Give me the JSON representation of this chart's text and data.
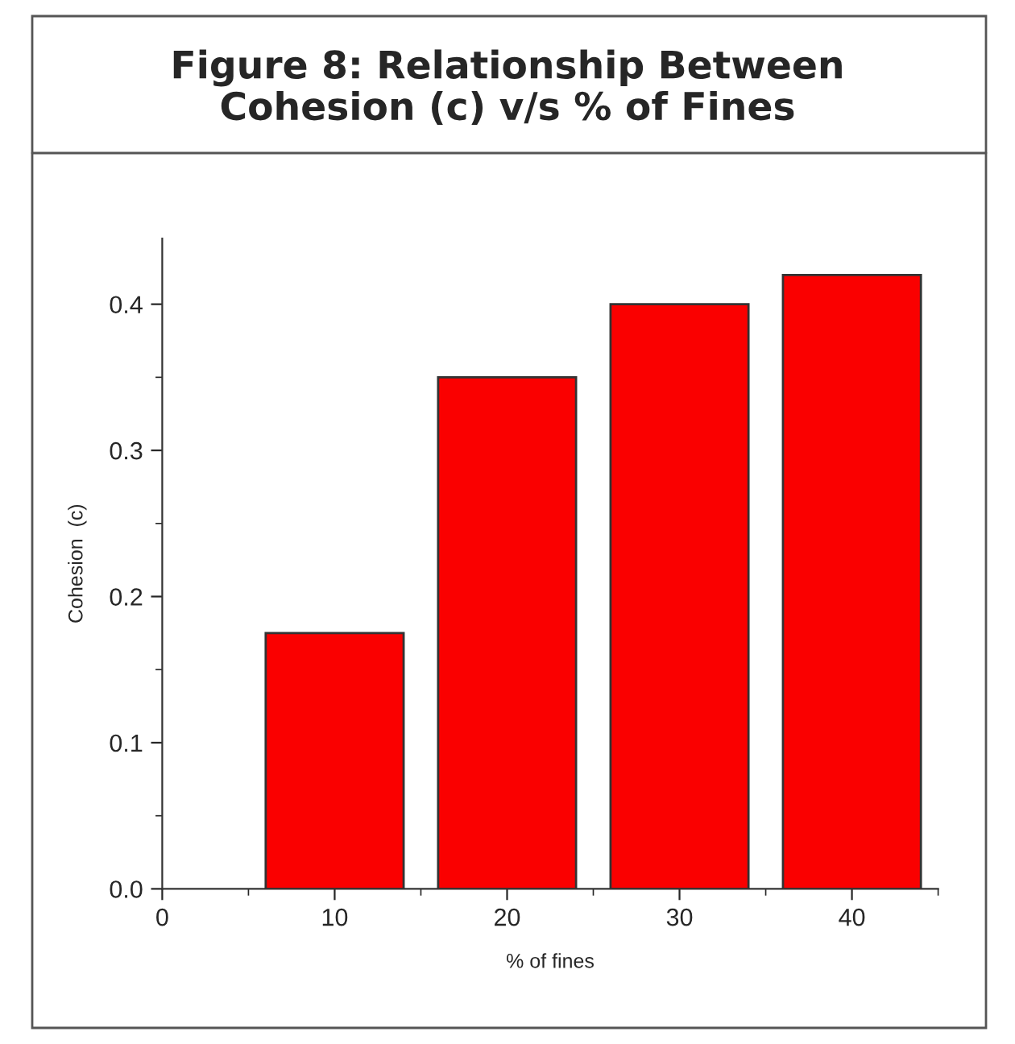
{
  "chart_data": {
    "type": "bar",
    "title": "Figure 8: Relationship Between\nCohesion (c) v/s % of Fines",
    "xlabel": "% of fines",
    "ylabel": "Cohesion  (c)",
    "x": [
      10,
      20,
      30,
      40
    ],
    "values": [
      0.175,
      0.35,
      0.4,
      0.42
    ],
    "color": "#fa0000",
    "xlim": [
      0,
      45
    ],
    "xticks": [
      0,
      {
        "value": 5,
        "label": null
      },
      10,
      {
        "value": 15,
        "label": null
      },
      20,
      {
        "value": 25,
        "label": null
      },
      30,
      {
        "value": 35,
        "label": null
      },
      40,
      {
        "value": 45,
        "label": null
      }
    ],
    "ylim": [
      0,
      0.445
    ],
    "yticks": [
      {
        "value": 0,
        "label": "0.0"
      },
      {
        "value": 0.05,
        "label": null
      },
      0.1,
      {
        "value": 0.15,
        "label": null
      },
      0.2,
      {
        "value": 0.25,
        "label": null
      },
      0.3,
      {
        "value": 0.35,
        "label": null
      },
      0.4
    ],
    "grid": false,
    "legend": false
  }
}
